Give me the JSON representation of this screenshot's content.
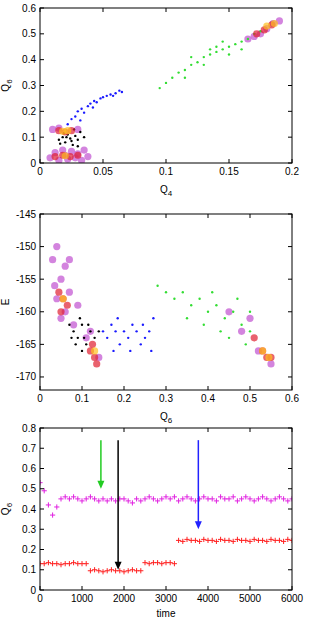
{
  "chart_data": [
    {
      "type": "scatter",
      "xlabel": "Q4",
      "ylabel": "Q6",
      "xlim": [
        0,
        0.2
      ],
      "ylim": [
        0,
        0.6
      ],
      "xticks": [
        0,
        0.05,
        0.1,
        0.15,
        0.2
      ],
      "yticks": [
        0,
        0.1,
        0.2,
        0.3,
        0.4,
        0.5,
        0.6
      ],
      "series": [
        {
          "color": "#c050d0",
          "marker": "blob",
          "x": [
            0.008,
            0.012,
            0.015,
            0.018,
            0.02,
            0.022,
            0.025,
            0.028,
            0.03,
            0.033,
            0.035,
            0.038,
            0.01,
            0.015,
            0.03,
            0.175,
            0.18,
            0.185,
            0.17,
            0.19,
            0.165
          ],
          "values": [
            0.02,
            0.04,
            0.01,
            0.05,
            0.03,
            0.015,
            0.045,
            0.02,
            0.035,
            0.01,
            0.05,
            0.025,
            0.13,
            0.135,
            0.13,
            0.5,
            0.52,
            0.54,
            0.49,
            0.55,
            0.48
          ]
        },
        {
          "color": "#33dd33",
          "marker": "dot",
          "x": [
            0.095,
            0.1,
            0.105,
            0.11,
            0.115,
            0.12,
            0.125,
            0.13,
            0.135,
            0.14,
            0.145,
            0.15,
            0.155,
            0.16,
            0.165,
            0.17,
            0.13,
            0.14,
            0.12,
            0.15,
            0.115,
            0.16,
            0.145,
            0.175,
            0.135
          ],
          "values": [
            0.29,
            0.31,
            0.33,
            0.35,
            0.36,
            0.38,
            0.39,
            0.41,
            0.42,
            0.43,
            0.44,
            0.45,
            0.46,
            0.47,
            0.48,
            0.5,
            0.38,
            0.45,
            0.41,
            0.42,
            0.33,
            0.44,
            0.47,
            0.51,
            0.44
          ]
        },
        {
          "color": "#1a1aff",
          "marker": "dot",
          "x": [
            0.022,
            0.025,
            0.028,
            0.03,
            0.033,
            0.035,
            0.038,
            0.04,
            0.043,
            0.045,
            0.048,
            0.05,
            0.053,
            0.056,
            0.06,
            0.063,
            0.065,
            0.032,
            0.042,
            0.058
          ],
          "values": [
            0.15,
            0.17,
            0.18,
            0.2,
            0.21,
            0.195,
            0.22,
            0.23,
            0.24,
            0.235,
            0.25,
            0.255,
            0.26,
            0.265,
            0.27,
            0.28,
            0.275,
            0.165,
            0.215,
            0.26
          ]
        },
        {
          "color": "#000000",
          "marker": "dot",
          "x": [
            0.015,
            0.018,
            0.02,
            0.022,
            0.024,
            0.026,
            0.028,
            0.03,
            0.032,
            0.019,
            0.025,
            0.035,
            0.027,
            0.016,
            0.03,
            0.021
          ],
          "values": [
            0.09,
            0.1,
            0.08,
            0.11,
            0.095,
            0.07,
            0.105,
            0.09,
            0.12,
            0.115,
            0.085,
            0.1,
            0.13,
            0.075,
            0.065,
            0.1
          ]
        },
        {
          "color": "#e02030",
          "marker": "blob",
          "x": [
            0.012,
            0.018,
            0.024,
            0.03,
            0.015,
            0.02,
            0.025,
            0.178,
            0.184,
            0.172
          ],
          "values": [
            0.025,
            0.03,
            0.025,
            0.03,
            0.125,
            0.12,
            0.125,
            0.515,
            0.535,
            0.5
          ]
        },
        {
          "color": "#ffc020",
          "marker": "blob",
          "x": [
            0.02,
            0.018,
            0.022,
            0.18,
            0.186
          ],
          "values": [
            0.028,
            0.123,
            0.125,
            0.53,
            0.54
          ]
        }
      ]
    },
    {
      "type": "scatter",
      "xlabel": "Q6",
      "ylabel": "E",
      "xlim": [
        0,
        0.6
      ],
      "ylim": [
        -172,
        -145
      ],
      "xticks": [
        0,
        0.1,
        0.2,
        0.3,
        0.4,
        0.5,
        0.6
      ],
      "yticks": [
        -145,
        -150,
        -155,
        -160,
        -165,
        -170
      ],
      "series": [
        {
          "color": "#c050d0",
          "marker": "blob",
          "x": [
            0.03,
            0.04,
            0.05,
            0.06,
            0.07,
            0.04,
            0.05,
            0.06,
            0.08,
            0.035,
            0.09,
            0.07,
            0.11,
            0.12,
            0.14,
            0.5,
            0.52,
            0.55,
            0.48,
            0.45
          ],
          "values": [
            -152,
            -150,
            -155,
            -153,
            -157,
            -158,
            -161,
            -160,
            -162,
            -156,
            -159,
            -152,
            -164,
            -163,
            -167,
            -161,
            -166,
            -168,
            -163,
            -160
          ]
        },
        {
          "color": "#33dd33",
          "marker": "dot",
          "x": [
            0.28,
            0.3,
            0.32,
            0.34,
            0.36,
            0.38,
            0.4,
            0.42,
            0.44,
            0.46,
            0.48,
            0.5,
            0.35,
            0.43,
            0.47,
            0.39,
            0.45,
            0.5,
            0.41,
            0.49
          ],
          "values": [
            -156,
            -157,
            -158,
            -157,
            -159,
            -158,
            -160,
            -159,
            -161,
            -160,
            -162,
            -163,
            -161,
            -163,
            -158,
            -162,
            -164,
            -160,
            -157,
            -165
          ]
        },
        {
          "color": "#1a1aff",
          "marker": "dot",
          "x": [
            0.15,
            0.16,
            0.17,
            0.18,
            0.19,
            0.2,
            0.21,
            0.22,
            0.23,
            0.24,
            0.25,
            0.26,
            0.27,
            0.175,
            0.215,
            0.245,
            0.265,
            0.185
          ],
          "values": [
            -163,
            -164,
            -162,
            -163,
            -165,
            -163,
            -164,
            -162,
            -163,
            -165,
            -164,
            -163,
            -161,
            -166,
            -166,
            -162,
            -166,
            -161
          ]
        },
        {
          "color": "#000000",
          "marker": "dot",
          "x": [
            0.07,
            0.08,
            0.09,
            0.1,
            0.11,
            0.12,
            0.085,
            0.095,
            0.105,
            0.075,
            0.115,
            0.13,
            0.14,
            0.1
          ],
          "values": [
            -162,
            -163,
            -164,
            -162,
            -165,
            -163,
            -165,
            -161,
            -164,
            -164,
            -162,
            -164,
            -163,
            -166
          ]
        },
        {
          "color": "#e02030",
          "marker": "blob",
          "x": [
            0.045,
            0.055,
            0.065,
            0.05,
            0.125,
            0.13,
            0.12,
            0.135,
            0.51,
            0.53,
            0.54,
            0.55
          ],
          "values": [
            -157,
            -158,
            -159,
            -160,
            -165,
            -167,
            -166,
            -168,
            -164,
            -166,
            -167,
            -167
          ]
        },
        {
          "color": "#ffc020",
          "marker": "blob",
          "x": [
            0.055,
            0.13,
            0.53,
            0.545
          ],
          "values": [
            -158,
            -166,
            -166,
            -167
          ]
        }
      ]
    },
    {
      "type": "line",
      "xlabel": "time",
      "ylabel": "Q6",
      "xlim": [
        0,
        6000
      ],
      "ylim": [
        0,
        0.8
      ],
      "xticks": [
        0,
        1000,
        2000,
        3000,
        4000,
        5000,
        6000
      ],
      "yticks": [
        0,
        0.1,
        0.2,
        0.3,
        0.4,
        0.5,
        0.6,
        0.7,
        0.8
      ],
      "x": [
        0,
        100,
        200,
        300,
        400,
        500,
        600,
        700,
        800,
        900,
        1000,
        1100,
        1200,
        1300,
        1400,
        1500,
        1600,
        1700,
        1800,
        1900,
        2000,
        2100,
        2200,
        2300,
        2400,
        2500,
        2600,
        2700,
        2800,
        2900,
        3000,
        3100,
        3200,
        3300,
        3400,
        3500,
        3600,
        3700,
        3800,
        3900,
        4000,
        4100,
        4200,
        4300,
        4400,
        4500,
        4600,
        4700,
        4800,
        4900,
        5000,
        5100,
        5200,
        5300,
        5400,
        5500,
        5600,
        5700,
        5800,
        5900,
        6000
      ],
      "series": [
        {
          "color": "#e020e0",
          "marker": "plus",
          "line_style": "none",
          "values": [
            0.53,
            0.49,
            0.42,
            0.37,
            0.41,
            0.45,
            0.46,
            0.45,
            0.46,
            0.45,
            0.44,
            0.45,
            0.46,
            0.45,
            0.44,
            0.45,
            0.44,
            0.45,
            0.44,
            0.45,
            0.45,
            0.44,
            0.43,
            0.45,
            0.44,
            0.45,
            0.46,
            0.45,
            0.44,
            0.45,
            0.46,
            0.45,
            0.46,
            0.44,
            0.45,
            0.46,
            0.45,
            0.44,
            0.45,
            0.46,
            0.45,
            0.45,
            0.44,
            0.46,
            0.45,
            0.45,
            0.46,
            0.44,
            0.45,
            0.46,
            0.45,
            0.44,
            0.45,
            0.46,
            0.45,
            0.44,
            0.45,
            0.46,
            0.45,
            0.44,
            0.45
          ]
        },
        {
          "color": "#ff2020",
          "marker": "plus",
          "line_style": "none",
          "values": [
            0.13,
            0.13,
            0.135,
            0.13,
            0.13,
            0.125,
            0.13,
            0.13,
            0.135,
            0.13,
            0.13,
            0.13,
            0.095,
            0.1,
            0.095,
            0.09,
            0.095,
            0.1,
            0.095,
            0.095,
            0.09,
            0.095,
            0.1,
            0.095,
            0.095,
            0.135,
            0.13,
            0.135,
            0.135,
            0.13,
            0.135,
            0.135,
            0.13,
            0.245,
            0.24,
            0.25,
            0.245,
            0.245,
            0.24,
            0.25,
            0.245,
            0.245,
            0.24,
            0.25,
            0.245,
            0.245,
            0.24,
            0.25,
            0.245,
            0.245,
            0.24,
            0.25,
            0.245,
            0.245,
            0.24,
            0.25,
            0.245,
            0.245,
            0.24,
            0.25,
            0.245
          ]
        }
      ],
      "arrows": [
        {
          "x": 1450,
          "y": [
            0.74,
            0.5
          ],
          "color": "#22cc22"
        },
        {
          "x": 1860,
          "y": [
            0.74,
            0.1
          ],
          "color": "#000000"
        },
        {
          "x": 3770,
          "y": [
            0.74,
            0.3
          ],
          "color": "#2222ff"
        }
      ]
    }
  ]
}
